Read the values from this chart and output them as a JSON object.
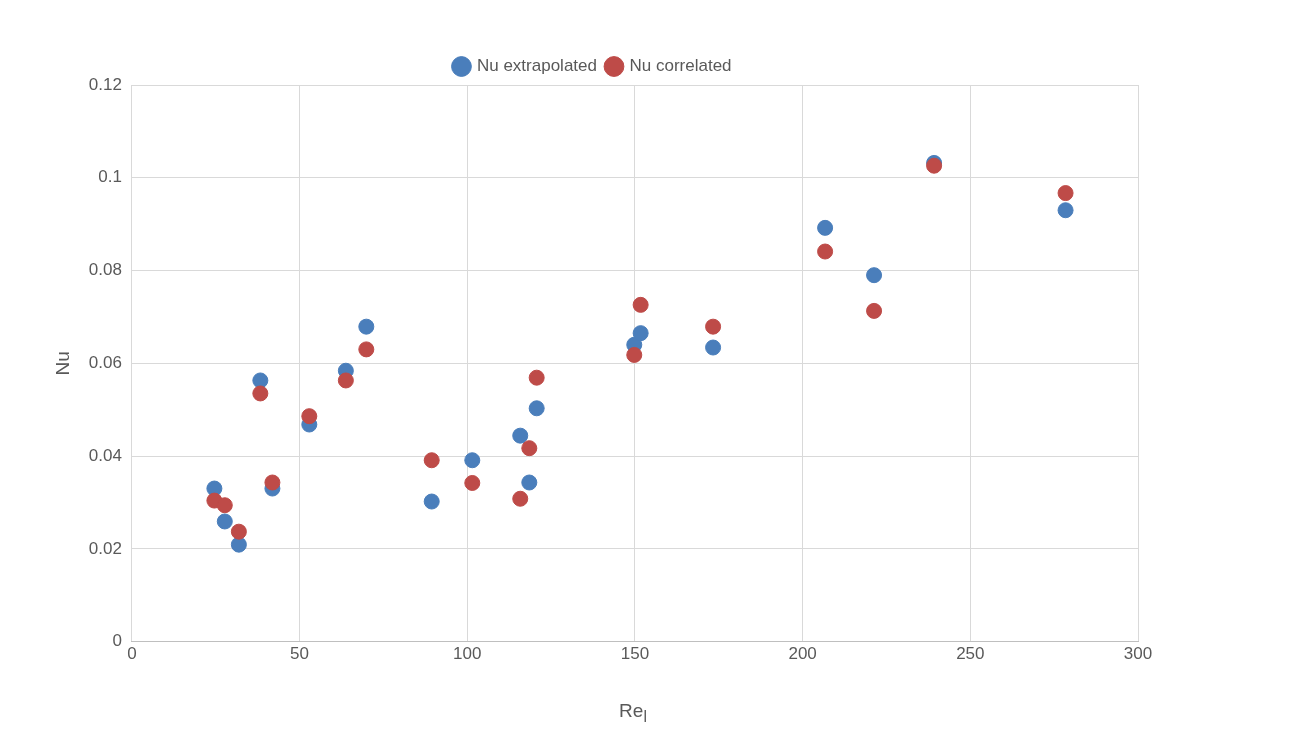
{
  "chart_data": {
    "type": "scatter",
    "xlabel": "Re$_{l}$",
    "ylabel": "Nu",
    "xlim": [
      0,
      300
    ],
    "xticks": [
      0,
      50,
      100,
      150,
      200,
      250,
      300
    ],
    "ylim": [
      0,
      0.12
    ],
    "yticks": [
      0,
      0.02,
      0.04,
      0.06,
      0.08,
      0.1,
      0.12
    ],
    "grid": true,
    "legend": "top",
    "marker": "circle",
    "series": [
      {
        "name": "Nu extrapolated",
        "color": "#4a7ebb",
        "x": [
          24.6,
          27.7,
          31.9,
          38.3,
          41.9,
          52.9,
          63.8,
          69.9,
          89.4,
          101.5,
          115.8,
          118.5,
          120.7,
          149.8,
          151.7,
          173.3,
          206.7,
          221.3,
          239.2,
          278.4
        ],
        "values": [
          0.033,
          0.0259,
          0.0209,
          0.0563,
          0.033,
          0.0468,
          0.0584,
          0.0679,
          0.0302,
          0.0391,
          0.0444,
          0.0343,
          0.0503,
          0.064,
          0.0665,
          0.0634,
          0.0892,
          0.079,
          0.1032,
          0.093
        ]
      },
      {
        "name": "Nu correlated",
        "color": "#be4b48",
        "x": [
          24.6,
          27.7,
          31.9,
          38.3,
          41.9,
          52.9,
          63.8,
          69.9,
          89.4,
          101.5,
          115.8,
          118.5,
          120.7,
          149.8,
          151.7,
          173.3,
          206.7,
          221.3,
          239.2,
          278.4
        ],
        "values": [
          0.0304,
          0.0294,
          0.0237,
          0.0535,
          0.0343,
          0.0486,
          0.0563,
          0.063,
          0.0391,
          0.0342,
          0.0308,
          0.0417,
          0.0569,
          0.0618,
          0.0726,
          0.0679,
          0.0841,
          0.0713,
          0.1026,
          0.0967
        ]
      }
    ]
  }
}
